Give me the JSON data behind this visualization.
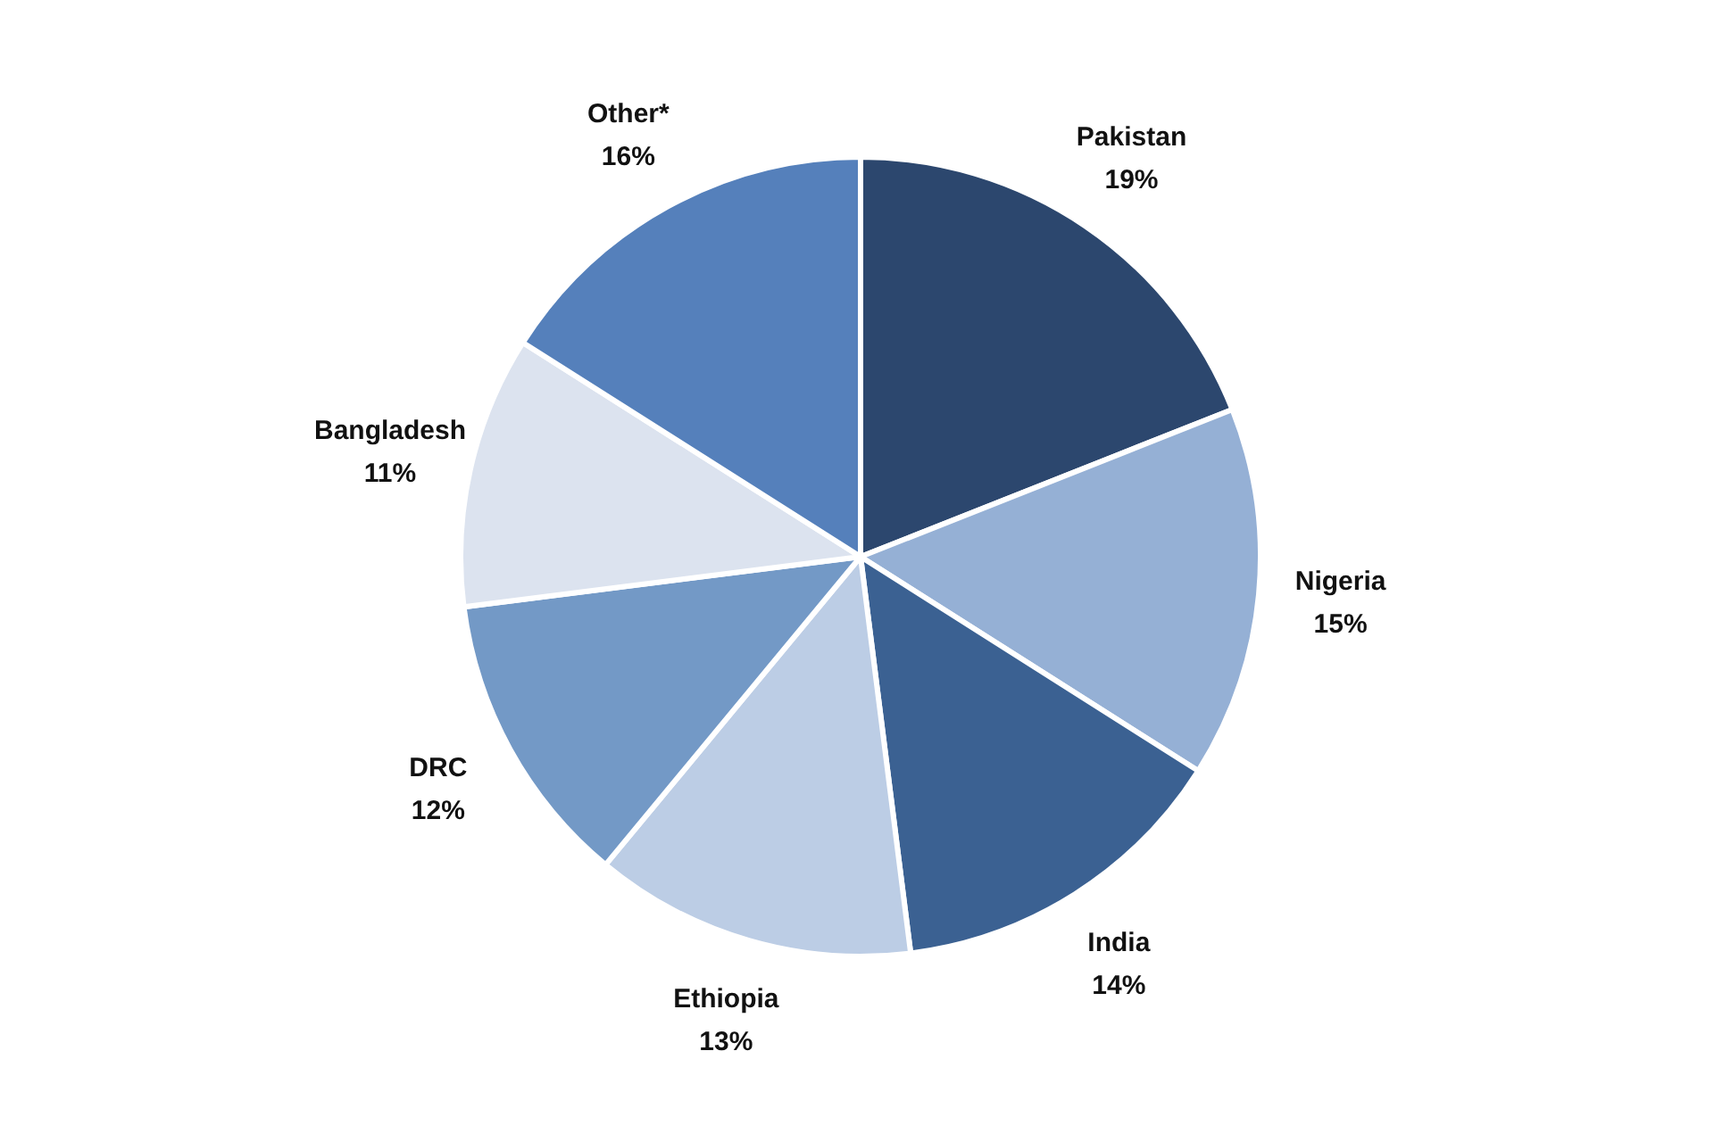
{
  "chart_data": {
    "type": "pie",
    "categories": [
      "Pakistan",
      "Nigeria",
      "India",
      "Ethiopia",
      "DRC",
      "Bangladesh",
      "Other*"
    ],
    "values": [
      19,
      15,
      14,
      13,
      12,
      11,
      16
    ],
    "colors": [
      "#2c476e",
      "#95b0d5",
      "#3b6192",
      "#bccde5",
      "#7399c6",
      "#dce3ef",
      "#5580bb"
    ],
    "value_labels": [
      "19%",
      "15%",
      "14%",
      "13%",
      "12%",
      "11%",
      "16%"
    ],
    "legend": false
  }
}
